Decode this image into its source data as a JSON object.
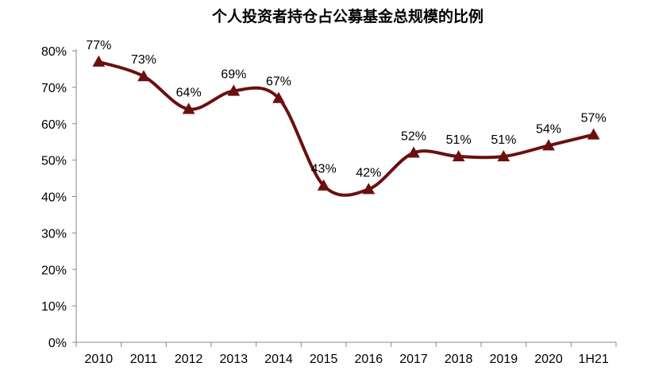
{
  "chart_data": {
    "type": "line",
    "title": "个人投资者持仓占公募基金总规模的比例",
    "categories": [
      "2010",
      "2011",
      "2012",
      "2013",
      "2014",
      "2015",
      "2016",
      "2017",
      "2018",
      "2019",
      "2020",
      "1H21"
    ],
    "series": [
      {
        "values": [
          77,
          73,
          64,
          69,
          67,
          43,
          42,
          52,
          51,
          51,
          54,
          57
        ]
      }
    ],
    "data_labels": [
      "77%",
      "73%",
      "64%",
      "69%",
      "67%",
      "43%",
      "42%",
      "52%",
      "51%",
      "51%",
      "54%",
      "57%"
    ],
    "y_ticks": [
      "0%",
      "10%",
      "20%",
      "30%",
      "40%",
      "50%",
      "60%",
      "70%",
      "80%"
    ],
    "ylim": [
      0,
      80
    ],
    "smooth": true,
    "marker": "triangle",
    "grid": false,
    "legend": "none",
    "colors": {
      "line": "#6B0F0F",
      "axis": "#888888"
    }
  }
}
